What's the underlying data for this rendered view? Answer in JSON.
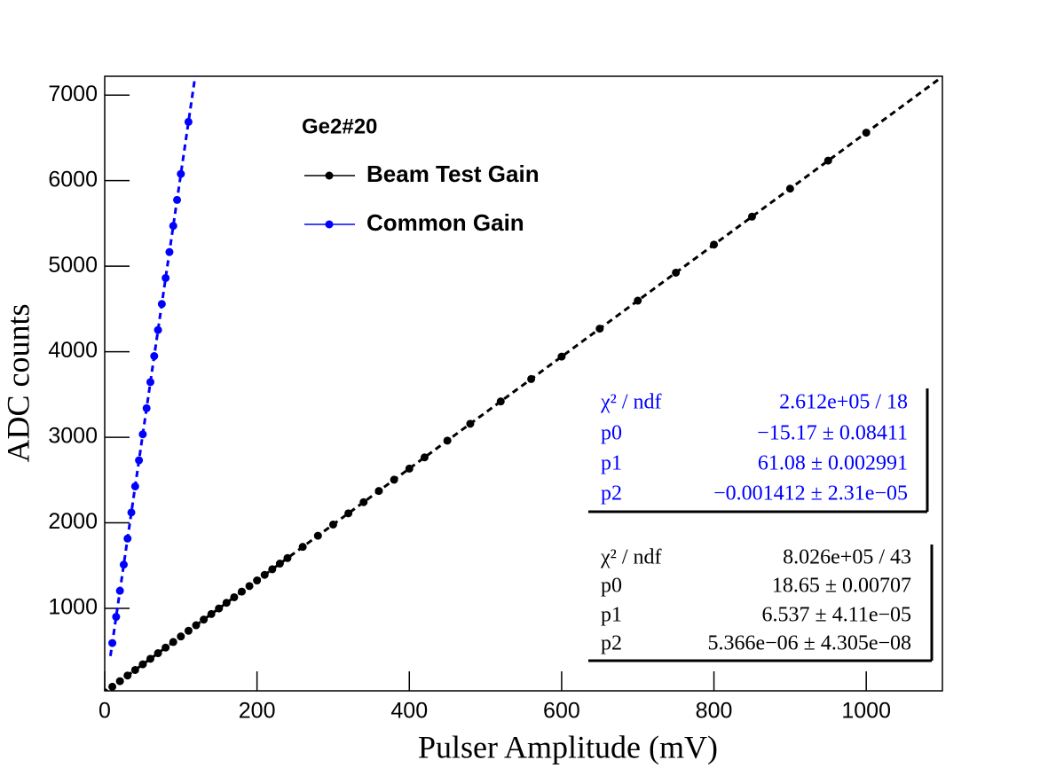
{
  "chart_data": {
    "type": "scatter",
    "xlabel": "Pulser Amplitude (mV)",
    "ylabel": "ADC counts",
    "legend_title": "Ge2#20",
    "xlim": [
      0,
      1100
    ],
    "ylim": [
      36,
      7220
    ],
    "xticks": [
      0,
      200,
      400,
      600,
      800,
      1000
    ],
    "yticks": [
      1000,
      2000,
      3000,
      4000,
      5000,
      6000,
      7000
    ],
    "series": [
      {
        "name": "Beam Test Gain",
        "color": "#000000",
        "x": [
          0,
          10,
          20,
          30,
          40,
          50,
          60,
          70,
          80,
          90,
          100,
          110,
          120,
          130,
          140,
          150,
          160,
          170,
          180,
          190,
          200,
          210,
          220,
          230,
          240,
          260,
          280,
          300,
          320,
          340,
          360,
          380,
          400,
          420,
          450,
          480,
          520,
          560,
          600,
          650,
          700,
          750,
          800,
          850,
          900,
          950,
          1000
        ],
        "values": [
          19,
          84,
          149,
          215,
          280,
          346,
          411,
          476,
          542,
          607,
          672,
          738,
          803,
          869,
          934,
          999,
          1065,
          1130,
          1196,
          1261,
          1326,
          1392,
          1457,
          1523,
          1588,
          1719,
          1849,
          1980,
          2111,
          2242,
          2373,
          2504,
          2634,
          2765,
          2961,
          3158,
          3419,
          3681,
          3943,
          4270,
          4597,
          4924,
          5252,
          5579,
          5906,
          6234,
          6561
        ],
        "stats": [
          {
            "name": "χ² / ndf",
            "label": "8.026e+05 / 43"
          },
          {
            "name": "p0",
            "label": "18.65 ± 0.00707",
            "value": 18.65
          },
          {
            "name": "p1",
            "label": "6.537 ± 4.11e−05",
            "value": 6.537
          },
          {
            "name": "p2",
            "label": "5.366e−06 ± 4.305e−08",
            "value": 5.366e-06
          }
        ]
      },
      {
        "name": "Common Gain",
        "color": "#0000ff",
        "x": [
          10,
          15,
          20,
          25,
          30,
          35,
          40,
          45,
          50,
          55,
          60,
          65,
          70,
          75,
          80,
          85,
          90,
          95,
          100,
          110
        ],
        "values": [
          595,
          901,
          1206,
          1511,
          1816,
          2121,
          2426,
          2731,
          3035,
          3340,
          3645,
          3949,
          4254,
          4558,
          4862,
          5166,
          5471,
          5775,
          6079,
          6687
        ],
        "stats": [
          {
            "name": "χ² / ndf",
            "label": "2.612e+05 / 18"
          },
          {
            "name": "p0",
            "label": "−15.17 ± 0.08411",
            "value": -15.17
          },
          {
            "name": "p1",
            "label": "61.08 ± 0.002991",
            "value": 61.08
          },
          {
            "name": "p2",
            "label": "−0.001412 ± 2.31e−05",
            "value": -0.001412
          }
        ]
      }
    ]
  }
}
